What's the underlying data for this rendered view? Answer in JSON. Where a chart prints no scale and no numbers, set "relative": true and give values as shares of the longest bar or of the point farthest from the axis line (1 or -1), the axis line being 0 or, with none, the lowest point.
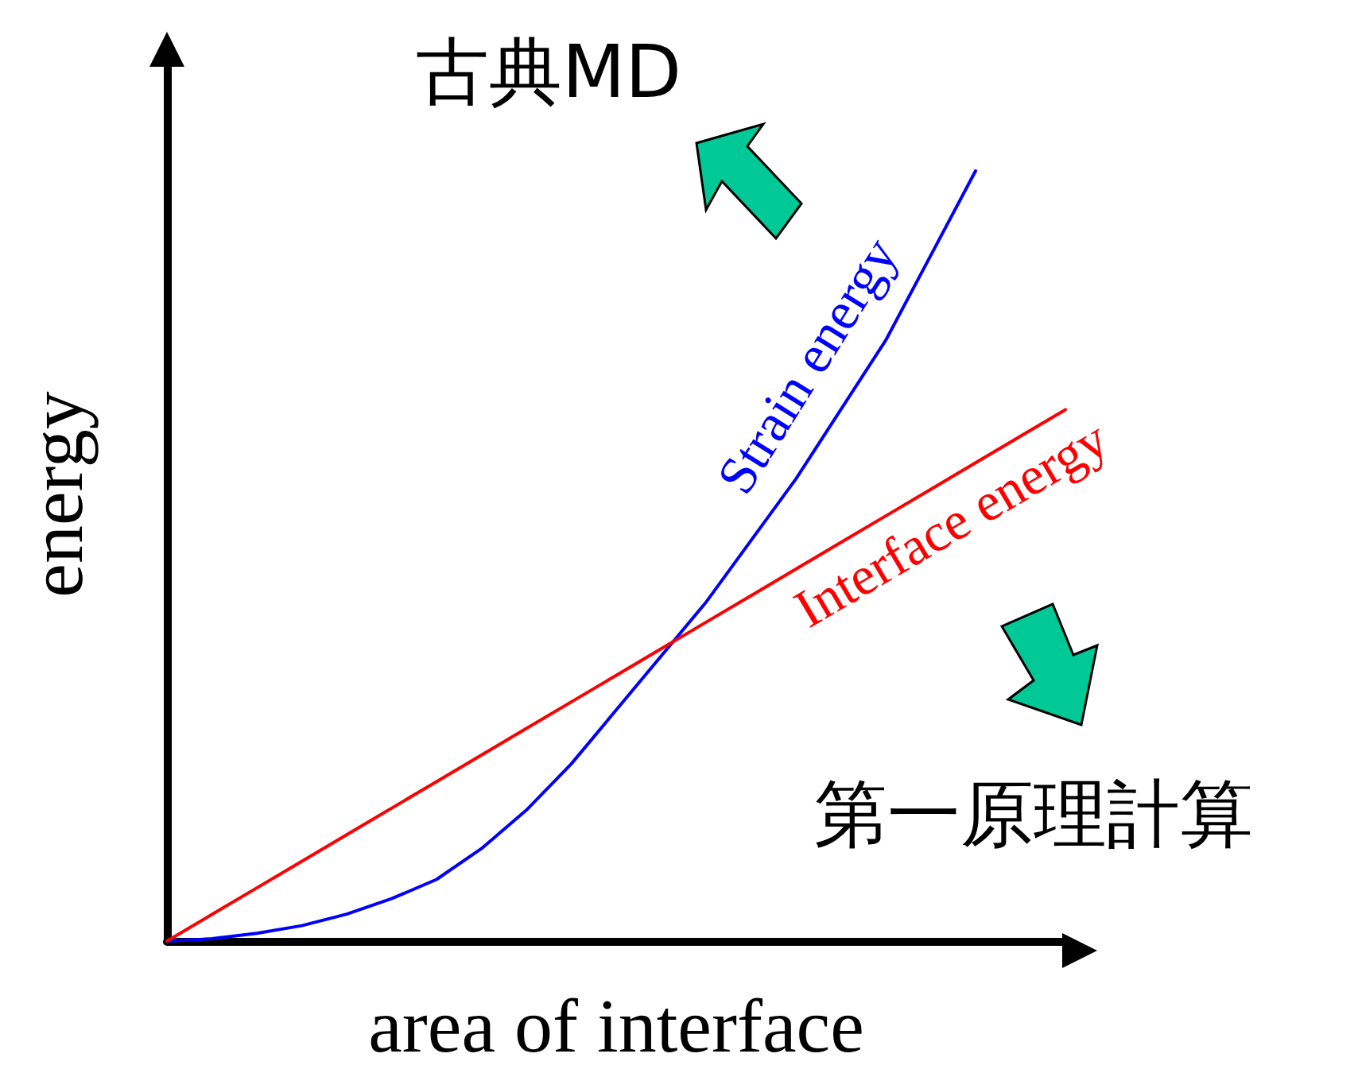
{
  "chart_data": {
    "type": "line",
    "relative": true,
    "xlabel": "area of interface",
    "ylabel": "energy",
    "categories": [
      null,
      null,
      null,
      null,
      null,
      null,
      null,
      null,
      null,
      null,
      null,
      null,
      null,
      null,
      null,
      null,
      null,
      null,
      null,
      null,
      null
    ],
    "series": [
      {
        "name": "Strain energy",
        "color": "#0000ff",
        "values": [
          0,
          0.003,
          0.01,
          0.02,
          0.035,
          0.055,
          0.08,
          0.12,
          0.17,
          0.23,
          0.3,
          0.37,
          0.44,
          0.52,
          0.6,
          0.69,
          0.78,
          0.89,
          1.0,
          null,
          null
        ]
      },
      {
        "name": "Interface energy",
        "color": "#ff0000",
        "values": [
          0,
          0.0345,
          0.069,
          0.1035,
          0.138,
          0.1725,
          0.207,
          0.2415,
          0.276,
          0.3105,
          0.345,
          0.3795,
          0.414,
          0.4485,
          0.483,
          0.5175,
          0.552,
          0.5865,
          0.621,
          0.6555,
          0.69
        ]
      }
    ],
    "annotations": [
      "古典MD",
      "第一原理計算"
    ],
    "grid": false,
    "legend": false,
    "marker": "none",
    "line_style": "solid"
  }
}
